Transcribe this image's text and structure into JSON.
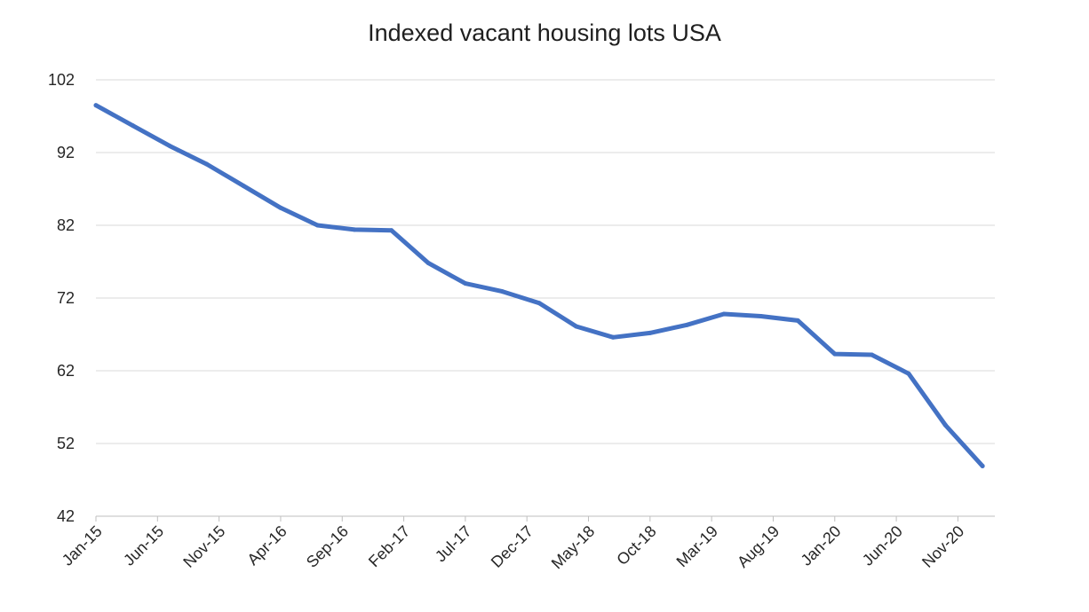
{
  "chart_data": {
    "type": "line",
    "title": "Indexed vacant housing lots USA",
    "xlabel": "",
    "ylabel": "",
    "ylim": [
      42,
      102
    ],
    "yticks": [
      42,
      52,
      62,
      72,
      82,
      92,
      102
    ],
    "xtick_labels": [
      "Jan-15",
      "Jun-15",
      "Nov-15",
      "Apr-16",
      "Sep-16",
      "Feb-17",
      "Jul-17",
      "Dec-17",
      "May-18",
      "Oct-18",
      "Mar-19",
      "Aug-19",
      "Jan-20",
      "Jun-20",
      "Nov-20"
    ],
    "grid": true,
    "legend": "none",
    "line_color": "#4472C4",
    "x": [
      "Jan-15",
      "Apr-15",
      "Jul-15",
      "Oct-15",
      "Jan-16",
      "Apr-16",
      "Jul-16",
      "Oct-16",
      "Jan-17",
      "Apr-17",
      "Jul-17",
      "Oct-17",
      "Jan-18",
      "Apr-18",
      "Jul-18",
      "Oct-18",
      "Jan-19",
      "Apr-19",
      "Jul-19",
      "Oct-19",
      "Jan-20",
      "Apr-20",
      "Jul-20",
      "Oct-20",
      "Jan-21"
    ],
    "series": [
      {
        "values": [
          98.5,
          95.7,
          92.9,
          90.4,
          87.4,
          84.4,
          82.0,
          81.4,
          81.3,
          76.8,
          74.0,
          72.9,
          71.3,
          68.1,
          66.6,
          67.2,
          68.3,
          69.8,
          69.5,
          68.9,
          64.3,
          64.2,
          61.6,
          54.5,
          48.9
        ]
      }
    ]
  }
}
